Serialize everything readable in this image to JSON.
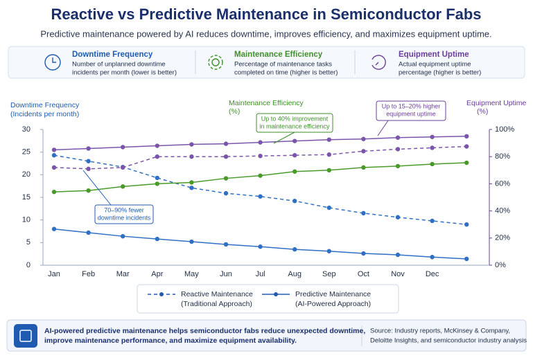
{
  "header": {
    "title": "Reactive vs Predictive Maintenance in Semiconductor Fabs",
    "subtitle": "Predictive maintenance powered by AI reduces downtime, improves efficiency, and maximizes equipment uptime."
  },
  "cards": [
    {
      "title": "Downtime Frequency",
      "lines": [
        "Number of unplanned downtime",
        "incidents per month (lower is better)"
      ],
      "color": "#1f5bb0"
    },
    {
      "title": "Maintenance Efficiency",
      "lines": [
        "Percentage of maintenance tasks",
        "completed on time (higher is better)"
      ],
      "color": "#3f8f2a"
    },
    {
      "title": "Equipment Uptime",
      "lines": [
        "Actual equipment uptime",
        "percentage (higher is better)"
      ],
      "color": "#6a3d9a"
    }
  ],
  "chart_data": {
    "type": "line",
    "y_title": [
      "Downtime Frequency",
      "(Incidents per month)"
    ],
    "mid_title": [
      "Maintenance Efficiency",
      "(%)"
    ],
    "y2_title": [
      "Equipment Uptime",
      "(%)"
    ],
    "categories": [
      "Jan",
      "Feb",
      "Mar",
      "Apr",
      "May",
      "Jun",
      "Jul",
      "Aug",
      "Sep",
      "Oct",
      "Nov",
      "Dec",
      null
    ],
    "ylim": [
      0,
      30
    ],
    "yticks": [
      0,
      5,
      10,
      15,
      20,
      25,
      30
    ],
    "y2lim": [
      0,
      100
    ],
    "y2ticks": [
      {
        "value": 0,
        "label": "0%"
      },
      {
        "value": 20,
        "label": "20%"
      },
      {
        "value": 40,
        "label": "40%"
      },
      {
        "value": 60,
        "label": "60%"
      },
      {
        "value": 80,
        "label": "80%"
      },
      {
        "value": 100,
        "label": "100%"
      }
    ],
    "series": [
      {
        "color": "#2f6fc4",
        "dashed": true,
        "values": [
          24.3,
          23,
          21.7,
          19.3,
          17.1,
          15.9,
          15.2,
          14.2,
          12.7,
          11.5,
          10.6,
          9.8,
          9.0
        ]
      },
      {
        "color": "#2f6fc4",
        "dashed": false,
        "values": [
          8,
          7.2,
          6.4,
          5.8,
          5.2,
          4.6,
          4.1,
          3.5,
          3.1,
          2.6,
          2.3,
          1.8,
          1.4
        ]
      },
      {
        "color": "#4a9a2a",
        "dashed": false,
        "axis": "y2",
        "values": [
          54,
          55,
          58,
          60,
          61,
          64,
          66,
          69,
          70,
          72,
          73,
          74.5,
          75.5
        ]
      },
      {
        "color": "#7a55ab",
        "dashed": true,
        "axis": "y2",
        "values": [
          72,
          71,
          72,
          80,
          80,
          80,
          80.5,
          81,
          81.5,
          84,
          85.5,
          86.5,
          87.5
        ]
      },
      {
        "color": "#7a55ab",
        "dashed": false,
        "axis": "y2",
        "values": [
          85,
          86,
          87,
          88,
          89,
          89.5,
          90.5,
          91.5,
          92.5,
          93,
          94,
          94.5,
          95
        ]
      }
    ],
    "annotations": [
      {
        "lines": [
          "Up to 40% improvement",
          "in maintenance efficiency"
        ],
        "color": "#3f8f2a"
      },
      {
        "lines": [
          "Up to 15–20% higher",
          "equipment uptime"
        ],
        "color": "#6a3d9a"
      },
      {
        "lines": [
          "70–90% fewer",
          "downtime incidents"
        ],
        "color": "#1f5bb0"
      }
    ],
    "legend": [
      {
        "label": "Reactive Maintenance",
        "sub": "(Traditional Approach)",
        "dashed": true
      },
      {
        "label": "Predictive Maintenance",
        "sub": "(AI-Powered Approach)",
        "dashed": false
      }
    ]
  },
  "footer": {
    "message": [
      "AI-powered predictive maintenance helps semiconductor fabs reduce unexpected downtime,",
      "improve maintenance performance, and maximize equipment availability."
    ],
    "source": [
      "Source: Industry reports, McKinsey & Company,",
      "Deloitte Insights, and semiconductor industry analysis"
    ]
  }
}
